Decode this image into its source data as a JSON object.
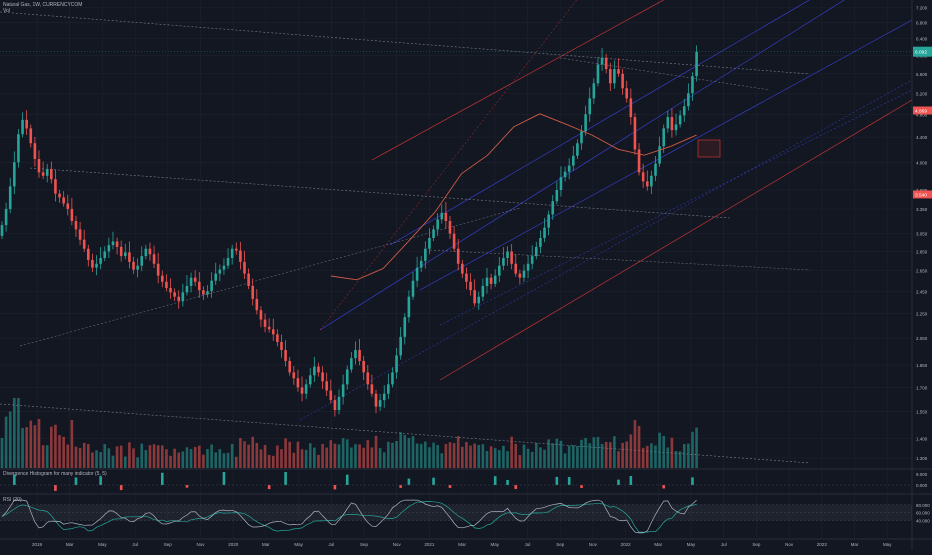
{
  "header": {
    "title": "Natural Gas, 1W, CURRENCYCOM",
    "sub": "Vol"
  },
  "panes": {
    "histogram_title": "Divergence Histogram for many indicator (5, 5)",
    "rsi_title": "RSI (20)"
  },
  "colors": {
    "background": "#131722",
    "up": "#26a69a",
    "down": "#ef5350",
    "channel_blue": "#3f4cff",
    "channel_red": "#e53935",
    "ma": "#d05a45",
    "rsi": "#aab4c8",
    "rsi_signal": "#26a69a",
    "trend_dashed": "#8d93a0"
  },
  "chart_data": [
    {
      "type": "candlestick",
      "title": "Natural Gas, 1W, CURRENCYCOM",
      "price_labels": [
        "7.200",
        "6.800",
        "6.400",
        "6.000",
        "5.600",
        "5.200",
        "4.800",
        "4.400",
        "4.000",
        "3.600",
        "3.350",
        "3.050",
        "2.850",
        "2.650",
        "2.450",
        "2.250",
        "2.050",
        "1.850",
        "1.700",
        "1.550",
        "1.400",
        "1.300"
      ],
      "ylim": [
        1.3,
        7.3
      ],
      "y_scale": "log",
      "last_price_label": "6.092",
      "badges": [
        {
          "text": "4.869",
          "color": "#ef5350"
        },
        {
          "text": "3.540",
          "color": "#ef5350"
        }
      ],
      "series": [
        {
          "name": "price",
          "close": [
            3.15,
            3.35,
            3.65,
            4.0,
            4.45,
            4.7,
            4.55,
            4.3,
            4.05,
            3.85,
            3.8,
            3.9,
            3.75,
            3.55,
            3.5,
            3.42,
            3.35,
            3.2,
            3.1,
            2.98,
            2.88,
            2.76,
            2.68,
            2.72,
            2.78,
            2.85,
            2.92,
            2.96,
            2.9,
            2.8,
            2.84,
            2.74,
            2.66,
            2.7,
            2.8,
            2.88,
            2.82,
            2.72,
            2.6,
            2.54,
            2.48,
            2.44,
            2.4,
            2.36,
            2.44,
            2.5,
            2.58,
            2.54,
            2.46,
            2.42,
            2.45,
            2.55,
            2.62,
            2.66,
            2.7,
            2.78,
            2.88,
            2.86,
            2.74,
            2.62,
            2.5,
            2.38,
            2.28,
            2.2,
            2.14,
            2.12,
            2.08,
            2.02,
            1.96,
            1.88,
            1.8,
            1.76,
            1.7,
            1.66,
            1.72,
            1.78,
            1.84,
            1.8,
            1.74,
            1.68,
            1.62,
            1.56,
            1.64,
            1.72,
            1.82,
            1.9,
            1.96,
            1.88,
            1.8,
            1.72,
            1.66,
            1.58,
            1.62,
            1.66,
            1.72,
            1.8,
            1.92,
            2.06,
            2.22,
            2.4,
            2.55,
            2.68,
            2.75,
            2.88,
            3.0,
            3.1,
            3.22,
            3.3,
            3.2,
            3.05,
            2.88,
            2.72,
            2.62,
            2.54,
            2.46,
            2.34,
            2.4,
            2.5,
            2.58,
            2.52,
            2.6,
            2.7,
            2.78,
            2.85,
            2.72,
            2.62,
            2.58,
            2.65,
            2.72,
            2.8,
            2.9,
            3.0,
            3.12,
            3.28,
            3.45,
            3.6,
            3.78,
            3.86,
            3.95,
            4.1,
            4.3,
            4.5,
            4.8,
            5.1,
            5.4,
            5.8,
            5.95,
            5.7,
            5.4,
            5.7,
            5.6,
            5.3,
            5.1,
            4.75,
            4.2,
            3.85,
            3.72,
            3.65,
            3.8,
            3.98,
            4.25,
            4.55,
            4.75,
            4.52,
            4.62,
            4.78,
            4.95,
            5.2,
            5.55,
            6.09
          ]
        }
      ],
      "ma_anchor_values": [
        2.78,
        2.74,
        2.86,
        3.18,
        3.55,
        4.1,
        4.4,
        4.9,
        5.15,
        4.95,
        4.75,
        4.5,
        4.4,
        4.55,
        4.75
      ],
      "panes": [
        {
          "name": "Vol",
          "note": "volume bars colored by candle direction"
        },
        {
          "name": "Divergence Histogram for many indicator (5, 5)",
          "ylim": [
            0,
            9
          ],
          "tick_labels": [
            "9.000",
            "0.000"
          ]
        },
        {
          "name": "RSI (20)",
          "ylim": [
            0,
            100
          ],
          "tick_labels": [
            "80.000",
            "60.000",
            "40.000"
          ],
          "current_values": [
            56.22,
            63.53
          ]
        }
      ],
      "x_tick_labels": [
        "2019",
        "Mar",
        "May",
        "Jul",
        "Sep",
        "Nov",
        "2020",
        "Mar",
        "May",
        "Jul",
        "Sep",
        "Nov",
        "2021",
        "Mar",
        "May",
        "Jul",
        "Sep",
        "Nov",
        "2022",
        "Mar",
        "May",
        "Jul",
        "Sep",
        "Nov",
        "2023",
        "Mar",
        "May"
      ],
      "grid": true
    }
  ]
}
